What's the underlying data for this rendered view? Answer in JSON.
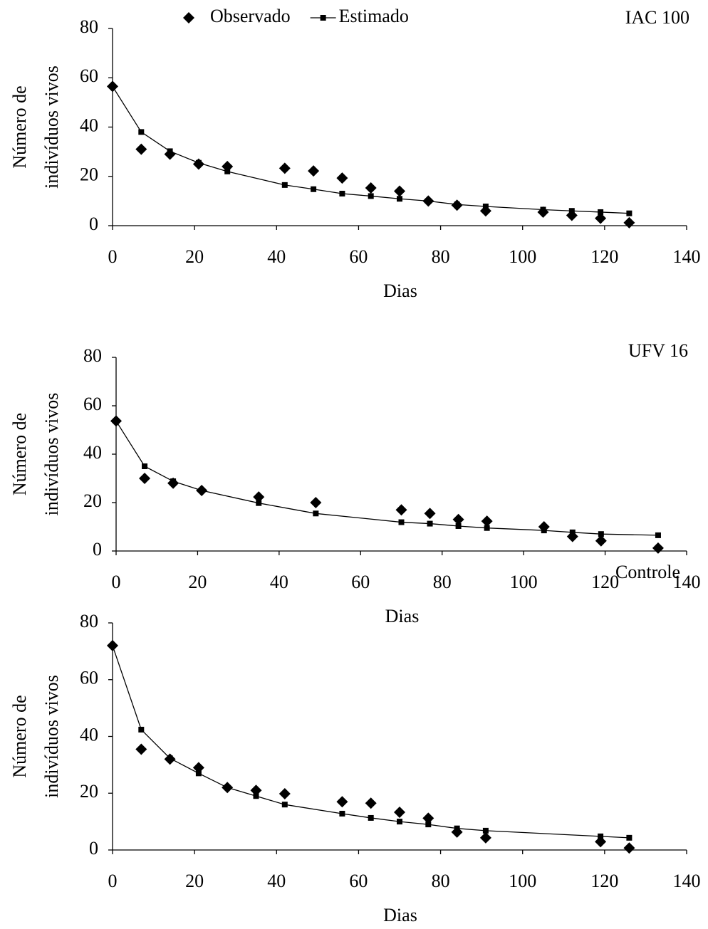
{
  "chart_data": [
    {
      "type": "line",
      "title": "IAC 100",
      "x_label": "Dias",
      "y_label": [
        "Número de",
        "indivíduos vivos"
      ],
      "x": [
        0,
        7,
        14,
        21,
        28,
        42,
        49,
        56,
        63,
        70,
        77,
        84,
        91,
        105,
        112,
        119,
        126
      ],
      "series": [
        {
          "name": "Observado",
          "color": "#000000",
          "marker": "diamond",
          "line": false,
          "values": [
            56.5,
            31,
            29,
            25,
            24,
            23.3,
            22.2,
            19.3,
            15.3,
            14,
            10,
            8.3,
            6,
            5.5,
            4.2,
            3,
            1.2
          ]
        },
        {
          "name": "Estimado",
          "color": "#000000",
          "marker": "square",
          "line": true,
          "values": [
            56.5,
            38,
            30.2,
            25.5,
            22,
            16.5,
            14.8,
            13,
            12,
            10.9,
            10,
            8.6,
            7.8,
            6.5,
            6,
            5.5,
            5
          ]
        }
      ],
      "legend": true,
      "xlim": [
        0,
        140
      ],
      "xticks": [
        0,
        20,
        40,
        60,
        80,
        100,
        120,
        140
      ],
      "ylim": [
        0,
        80
      ],
      "yticks": [
        0,
        20,
        40,
        60,
        80
      ]
    },
    {
      "type": "line",
      "title": "UFV 16",
      "x_label": "Dias",
      "y_label": [
        "Número de",
        "indivíduos vivos"
      ],
      "x": [
        0,
        7,
        14,
        21,
        35,
        49,
        70,
        77,
        84,
        91,
        105,
        112,
        119,
        133
      ],
      "series": [
        {
          "color": "#000000",
          "marker": "diamond",
          "line": false,
          "values": [
            53.7,
            30,
            28,
            25,
            22.3,
            20,
            17,
            15.5,
            13,
            12.3,
            10,
            6,
            4.2,
            1.2
          ]
        },
        {
          "color": "#000000",
          "marker": "square",
          "line": true,
          "values": [
            53.7,
            35,
            28.8,
            25,
            19.8,
            15.5,
            11.9,
            11.3,
            10.3,
            9.5,
            8.5,
            7.7,
            7,
            6.5
          ]
        }
      ],
      "legend": false,
      "xlim": [
        0,
        140
      ],
      "xticks": [
        0,
        20,
        40,
        60,
        80,
        100,
        120,
        140
      ],
      "ylim": [
        0,
        80
      ],
      "yticks": [
        0,
        20,
        40,
        60,
        80
      ]
    },
    {
      "type": "line",
      "title": "Controle",
      "x_label": "Dias",
      "y_label": [
        "Número de",
        "indivíduos vivos"
      ],
      "x": [
        0,
        7,
        14,
        21,
        28,
        35,
        42,
        56,
        63,
        70,
        77,
        84,
        91,
        119,
        126
      ],
      "series": [
        {
          "color": "#000000",
          "marker": "diamond",
          "line": false,
          "values": [
            72,
            35.5,
            32,
            29,
            22,
            21,
            19.8,
            17,
            16.5,
            13.3,
            11.2,
            6.3,
            4.3,
            2.9,
            0.7
          ]
        },
        {
          "color": "#000000",
          "marker": "square",
          "line": true,
          "values": [
            72,
            42.4,
            32.3,
            27,
            22,
            19,
            16,
            12.8,
            11.3,
            10,
            9,
            7.6,
            6.8,
            4.8,
            4.3
          ]
        }
      ],
      "legend": false,
      "xlim": [
        0,
        140
      ],
      "xticks": [
        0,
        20,
        40,
        60,
        80,
        100,
        120,
        140
      ],
      "ylim": [
        0,
        80
      ],
      "yticks": [
        0,
        20,
        40,
        60,
        80
      ]
    }
  ]
}
